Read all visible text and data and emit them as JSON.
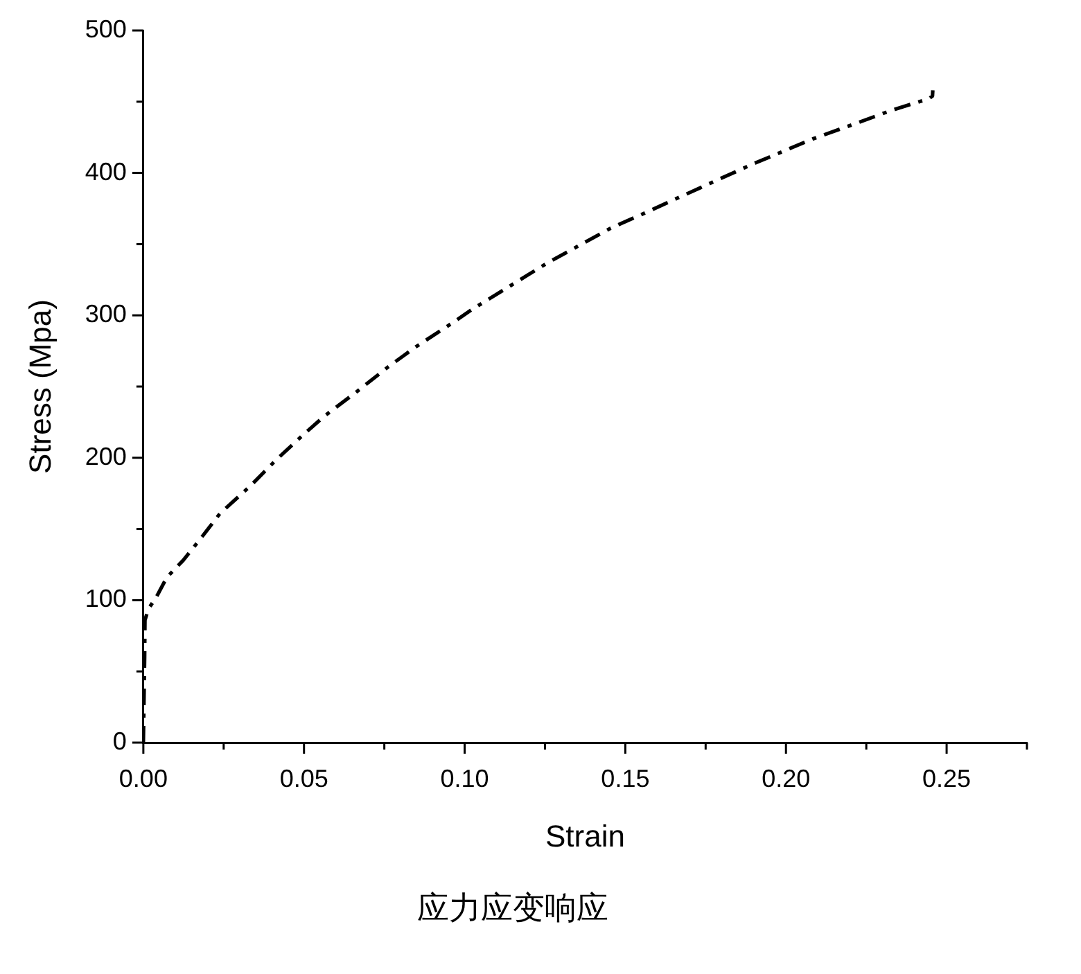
{
  "chart_data": {
    "type": "line",
    "xlabel": "Strain",
    "ylabel": "Stress (Mpa)",
    "annotations": [
      "应力应变响应"
    ],
    "x": [
      0,
      0.0002,
      0.0004,
      0.0005,
      0.0016,
      0.004,
      0.0073,
      0.0124,
      0.0174,
      0.0239,
      0.0332,
      0.0411,
      0.0497,
      0.0562,
      0.0662,
      0.0763,
      0.0849,
      0.0964,
      0.1022,
      0.1151,
      0.1259,
      0.1453,
      0.1582,
      0.1776,
      0.1905,
      0.2085,
      0.2221,
      0.2329,
      0.2444,
      0.2456,
      0.2457
    ],
    "series": [
      {
        "color": "#000000",
        "values": [
          0,
          30,
          60,
          86,
          94,
          102,
          116,
          128,
          142,
          161,
          180,
          198,
          216,
          229,
          246,
          264,
          278,
          295,
          304,
          322,
          337,
          361,
          374,
          394,
          407,
          424,
          435,
          444,
          452,
          454,
          458
        ]
      }
    ],
    "xlim": [
      0,
      0.275
    ],
    "ylim": [
      0,
      500
    ],
    "xticks": [
      {
        "value": 0,
        "label": "0.00"
      },
      {
        "value": 0.025,
        "label": null
      },
      {
        "value": 0.05,
        "label": "0.05"
      },
      {
        "value": 0.075,
        "label": null
      },
      {
        "value": 0.1,
        "label": "0.10"
      },
      {
        "value": 0.125,
        "label": null
      },
      {
        "value": 0.15,
        "label": "0.15"
      },
      {
        "value": 0.175,
        "label": null
      },
      {
        "value": 0.2,
        "label": "0.20"
      },
      {
        "value": 0.225,
        "label": null
      },
      {
        "value": 0.25,
        "label": "0.25"
      },
      {
        "value": 0.275,
        "label": null
      }
    ],
    "yticks": [
      0,
      {
        "value": 50,
        "label": null
      },
      100,
      {
        "value": 150,
        "label": null
      },
      200,
      {
        "value": 250,
        "label": null
      },
      300,
      {
        "value": 350,
        "label": null
      },
      400,
      {
        "value": 450,
        "label": null
      },
      500
    ],
    "grid": false,
    "legend": false,
    "marker": "none",
    "line_style": "dashdot"
  }
}
